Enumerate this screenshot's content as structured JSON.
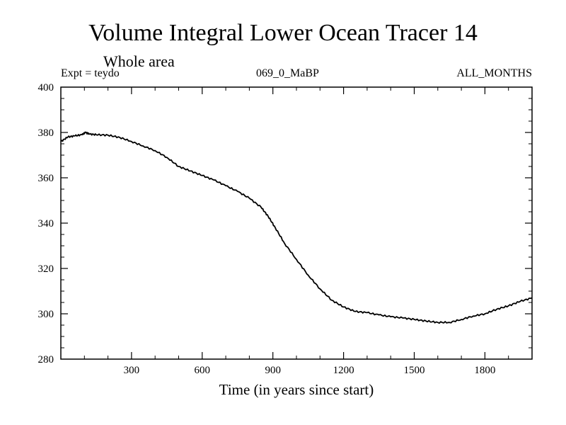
{
  "chart_data": {
    "type": "line",
    "title": "Volume Integral Lower Ocean Tracer 14",
    "subtitle": "Whole area",
    "experiment_label": "Expt = teydo",
    "time_label": "069_0_MaBP",
    "season_label": "ALL_MONTHS",
    "xlabel": "Time (in years since start)",
    "ylabel": "",
    "xlim": [
      0,
      2000
    ],
    "ylim": [
      280,
      400
    ],
    "x_ticks": [
      300,
      600,
      900,
      1200,
      1500,
      1800
    ],
    "y_ticks": [
      280,
      300,
      320,
      340,
      360,
      380,
      400
    ],
    "series": [
      {
        "name": "Volume Integral Lower Ocean Tracer 14",
        "color": "#000000",
        "x": [
          0,
          30,
          60,
          90,
          105,
          120,
          150,
          200,
          250,
          300,
          350,
          400,
          450,
          500,
          550,
          600,
          650,
          700,
          750,
          800,
          850,
          880,
          910,
          950,
          1000,
          1050,
          1100,
          1150,
          1200,
          1250,
          1300,
          1350,
          1400,
          1450,
          1500,
          1550,
          1600,
          1650,
          1700,
          1750,
          1800,
          1850,
          1900,
          1950,
          2000
        ],
        "values": [
          376,
          378,
          378.5,
          379,
          380,
          379.3,
          379,
          378.8,
          377.8,
          376,
          374,
          372,
          369,
          365,
          363,
          361,
          359,
          356.5,
          354,
          351,
          347,
          343,
          338,
          331,
          324,
          317,
          311,
          306,
          303,
          301,
          300.5,
          299.5,
          298.7,
          298.2,
          297.5,
          296.8,
          296.2,
          296.2,
          297.5,
          299,
          300,
          302,
          303.5,
          305.5,
          307
        ]
      }
    ]
  }
}
